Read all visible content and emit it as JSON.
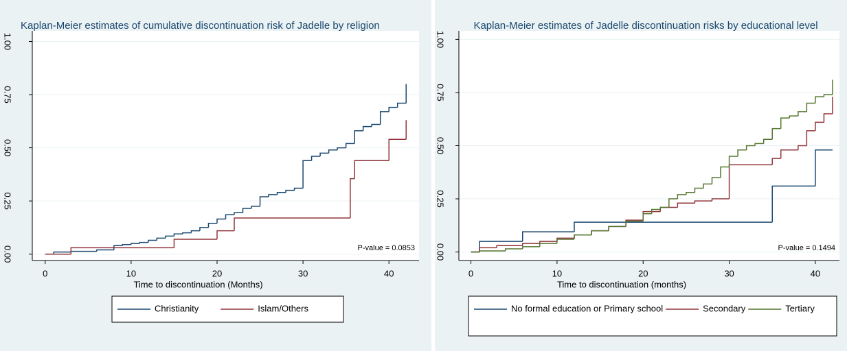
{
  "chart_data": [
    {
      "type": "step",
      "title": "Kaplan-Meier  estimates of cumulative discontinuation risk of Jadelle by religion",
      "x_label": "Time to discontinuation (Months)",
      "annotation": "P-value =  0.0853",
      "xlim": [
        -1.5,
        43.5
      ],
      "ylim": [
        -0.03,
        1.05
      ],
      "xticks": [
        0,
        10,
        20,
        30,
        40
      ],
      "yticks": [
        {
          "value": 0,
          "label": "0.00"
        },
        {
          "value": 0.25,
          "label": "0.25"
        },
        {
          "value": 0.5,
          "label": "0.50"
        },
        {
          "value": 0.75,
          "label": "0.75"
        },
        {
          "value": 1,
          "label": "1.00"
        }
      ],
      "grid": true,
      "series": [
        {
          "name": "Christianity",
          "color": "#1a476f",
          "x": [
            0,
            1,
            3,
            6,
            8,
            9,
            10,
            11,
            12,
            13,
            14,
            15,
            16,
            17,
            18,
            19,
            20,
            21,
            22,
            23,
            24,
            25,
            26,
            27,
            28,
            29,
            30,
            31,
            32,
            33,
            34,
            35,
            36,
            37,
            38,
            39,
            40,
            41,
            42
          ],
          "values": [
            0,
            0.01,
            0.013,
            0.02,
            0.04,
            0.045,
            0.05,
            0.055,
            0.065,
            0.075,
            0.085,
            0.095,
            0.1,
            0.11,
            0.125,
            0.145,
            0.165,
            0.185,
            0.195,
            0.215,
            0.225,
            0.27,
            0.28,
            0.29,
            0.3,
            0.31,
            0.44,
            0.46,
            0.475,
            0.49,
            0.5,
            0.52,
            0.58,
            0.6,
            0.61,
            0.67,
            0.69,
            0.71,
            0.8
          ]
        },
        {
          "name": "Islam/Others",
          "color": "#90353b",
          "x": [
            0,
            3,
            15,
            20,
            22,
            35.5,
            36,
            40,
            42
          ],
          "values": [
            0,
            0.03,
            0.07,
            0.11,
            0.17,
            0.355,
            0.44,
            0.54,
            0.63
          ]
        }
      ]
    },
    {
      "type": "step",
      "title": "Kaplan-Meier estimates of  Jadelle discontinuation risks  by educational level",
      "x_label": "Time to discontinuation (months)",
      "annotation": "P-value = 0.1494",
      "xlim": [
        -1.4,
        42.8
      ],
      "ylim": [
        -0.04,
        1.04
      ],
      "xticks": [
        0,
        10,
        20,
        30,
        40
      ],
      "yticks": [
        {
          "value": 0,
          "label": "0.00"
        },
        {
          "value": 0.25,
          "label": "0.25"
        },
        {
          "value": 0.5,
          "label": "0.50"
        },
        {
          "value": 0.75,
          "label": "0.75"
        },
        {
          "value": 1,
          "label": "1.00"
        }
      ],
      "grid": true,
      "series": [
        {
          "name": "No formal education or Primary school",
          "color": "#1a476f",
          "x": [
            0,
            1,
            6,
            12,
            35,
            40,
            42
          ],
          "values": [
            0,
            0.05,
            0.095,
            0.14,
            0.31,
            0.48,
            0.48
          ]
        },
        {
          "name": "Secondary",
          "color": "#90353b",
          "x": [
            0,
            1,
            3,
            6,
            8,
            10,
            12,
            14,
            16,
            18,
            20,
            22,
            24,
            26,
            28,
            30,
            35,
            36,
            38,
            39,
            40,
            41,
            42
          ],
          "values": [
            0,
            0.02,
            0.03,
            0.04,
            0.05,
            0.065,
            0.08,
            0.1,
            0.12,
            0.15,
            0.19,
            0.21,
            0.23,
            0.24,
            0.25,
            0.41,
            0.44,
            0.48,
            0.5,
            0.57,
            0.61,
            0.65,
            0.73
          ]
        },
        {
          "name": "Tertiary",
          "color": "#55752f",
          "x": [
            0,
            1,
            4,
            6,
            8,
            10,
            12,
            14,
            16,
            18,
            20,
            21,
            22,
            23,
            24,
            25,
            26,
            27,
            28,
            29,
            30,
            31,
            32,
            33,
            34,
            35,
            36,
            37,
            38,
            39,
            40,
            41,
            42
          ],
          "values": [
            0,
            0.005,
            0.015,
            0.025,
            0.04,
            0.06,
            0.08,
            0.1,
            0.12,
            0.145,
            0.18,
            0.2,
            0.21,
            0.25,
            0.27,
            0.28,
            0.3,
            0.32,
            0.35,
            0.4,
            0.45,
            0.48,
            0.5,
            0.51,
            0.53,
            0.58,
            0.63,
            0.64,
            0.66,
            0.7,
            0.73,
            0.74,
            0.81
          ]
        }
      ]
    }
  ]
}
